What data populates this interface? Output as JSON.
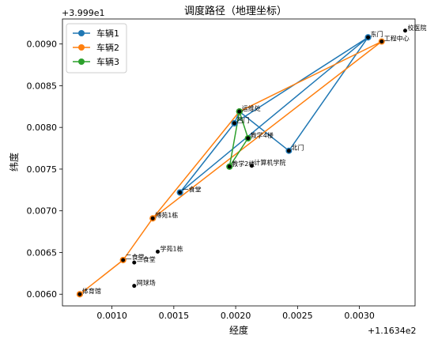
{
  "chart_data": {
    "type": "line",
    "title": "调度路径（地理坐标）",
    "xlabel": "经度",
    "ylabel": "纬度",
    "x_offset_label": "+1.1634e2",
    "y_offset_label": "+3.999e1",
    "x_offset": 116.34,
    "y_offset": 39.99,
    "xlim": [
      0.0006,
      0.00345
    ],
    "ylim": [
      0.00586,
      0.0093
    ],
    "x_ticks": [
      0.001,
      0.0015,
      0.002,
      0.0025,
      0.003
    ],
    "x_tick_labels": [
      "0.0010",
      "0.0015",
      "0.0020",
      "0.0025",
      "0.0030"
    ],
    "y_ticks": [
      0.006,
      0.0065,
      0.007,
      0.0075,
      0.008,
      0.0085,
      0.009
    ],
    "y_tick_labels": [
      "0.0060",
      "0.0065",
      "0.0070",
      "0.0075",
      "0.0080",
      "0.0085",
      "0.0090"
    ],
    "legend_position": "top-left",
    "points": [
      {
        "name": "东门",
        "x": 0.00307,
        "y": 0.00908
      },
      {
        "name": "工程中心",
        "x": 0.00318,
        "y": 0.00903
      },
      {
        "name": "校医院",
        "x": 0.00337,
        "y": 0.00916
      },
      {
        "name": "运维处",
        "x": 0.00203,
        "y": 0.00819
      },
      {
        "name": "西门",
        "x": 0.00199,
        "y": 0.00805
      },
      {
        "name": "教学4楼",
        "x": 0.0021,
        "y": 0.00787
      },
      {
        "name": "北门",
        "x": 0.00243,
        "y": 0.00772
      },
      {
        "name": "教学2楼",
        "x": 0.00195,
        "y": 0.00753
      },
      {
        "name": "计算机学院",
        "x": 0.00213,
        "y": 0.00754
      },
      {
        "name": "一食堂",
        "x": 0.00155,
        "y": 0.00722
      },
      {
        "name": "博苑1栋",
        "x": 0.00133,
        "y": 0.00691
      },
      {
        "name": "学苑1栋",
        "x": 0.00137,
        "y": 0.00651
      },
      {
        "name": "二食堂",
        "x": 0.00109,
        "y": 0.00641
      },
      {
        "name": "三食堂",
        "x": 0.00118,
        "y": 0.00638
      },
      {
        "name": "网球场",
        "x": 0.00118,
        "y": 0.0061
      },
      {
        "name": "体育馆",
        "x": 0.00074,
        "y": 0.006
      }
    ],
    "series": [
      {
        "name": "车辆1",
        "color": "#1f77b4",
        "x": [
          0.00155,
          0.00199,
          0.00307,
          0.00243,
          0.00203,
          0.00199,
          0.00307,
          0.00155
        ],
        "y": [
          0.00722,
          0.00805,
          0.00908,
          0.00772,
          0.00819,
          0.00805,
          0.00908,
          0.00722
        ]
      },
      {
        "name": "车辆2",
        "color": "#ff7f0e",
        "x": [
          0.00074,
          0.00109,
          0.00133,
          0.00203,
          0.00318,
          0.00133,
          0.00109,
          0.00074
        ],
        "y": [
          0.006,
          0.00641,
          0.00691,
          0.00819,
          0.00903,
          0.00691,
          0.00641,
          0.006
        ]
      },
      {
        "name": "车辆3",
        "color": "#2ca02c",
        "x": [
          0.00203,
          0.0021,
          0.00195,
          0.00203,
          0.0021,
          0.00195,
          0.00203
        ],
        "y": [
          0.00819,
          0.00787,
          0.00753,
          0.00819,
          0.00787,
          0.00753,
          0.00819
        ]
      }
    ]
  }
}
